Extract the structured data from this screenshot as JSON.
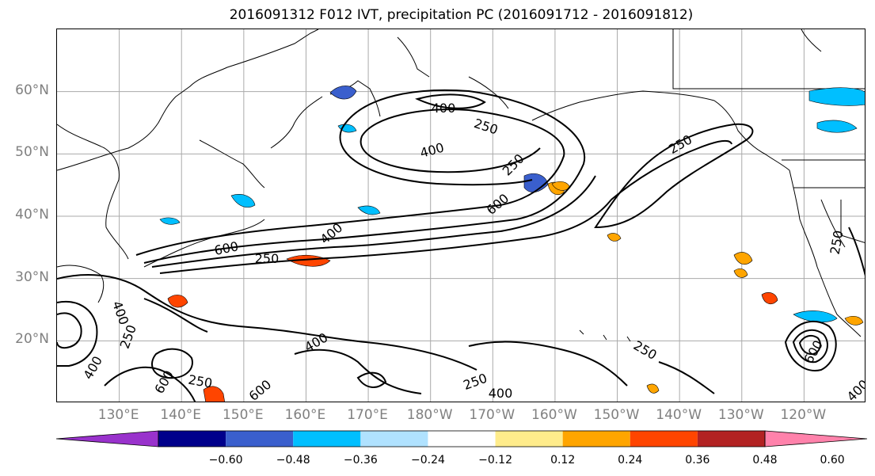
{
  "title": "2016091312 F012 IVT, precipitation PC (2016091712 - 2016091812)",
  "lat_labels": [
    {
      "label": "60°N",
      "lat": 60
    },
    {
      "label": "50°N",
      "lat": 50
    },
    {
      "label": "40°N",
      "lat": 40
    },
    {
      "label": "30°N",
      "lat": 30
    },
    {
      "label": "20°N",
      "lat": 20
    }
  ],
  "lon_labels": [
    {
      "label": "130°E",
      "lon": 130
    },
    {
      "label": "140°E",
      "lon": 140
    },
    {
      "label": "150°E",
      "lon": 150
    },
    {
      "label": "160°E",
      "lon": 160
    },
    {
      "label": "170°E",
      "lon": 170
    },
    {
      "label": "180°W",
      "lon": 180
    },
    {
      "label": "170°W",
      "lon": 190
    },
    {
      "label": "160°W",
      "lon": 200
    },
    {
      "label": "150°W",
      "lon": 210
    },
    {
      "label": "140°W",
      "lon": 220
    },
    {
      "label": "130°W",
      "lon": 230
    },
    {
      "label": "120°W",
      "lon": 240
    }
  ],
  "map_extent": {
    "lon_min": 120,
    "lon_max": 250,
    "lat_min": 10,
    "lat_max": 70
  },
  "ivt_contour_labels": [
    "400",
    "250",
    "400",
    "250",
    "600",
    "400",
    "600",
    "250",
    "400",
    "250",
    "400",
    "600",
    "250",
    "600",
    "400",
    "250",
    "250",
    "400",
    "250",
    "600",
    "400",
    "250"
  ],
  "colorbar": {
    "colors": [
      "#9932cc",
      "#00008b",
      "#3a5fcd",
      "#00bfff",
      "#b0e2ff",
      "#ffffff",
      "#ffec8b",
      "#ffa500",
      "#ff4500",
      "#b22222",
      "#ff82ab"
    ],
    "tick_labels": [
      "−0.60",
      "−0.48",
      "−0.36",
      "−0.24",
      "−0.12",
      "0.12",
      "0.24",
      "0.36",
      "0.48",
      "0.60"
    ]
  }
}
